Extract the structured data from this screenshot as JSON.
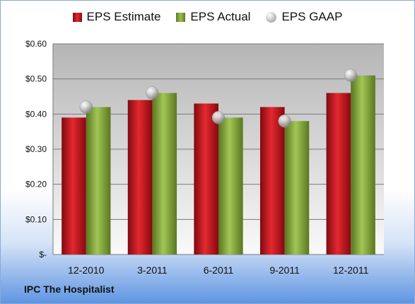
{
  "chart_data": {
    "type": "bar",
    "categories": [
      "12-2010",
      "3-2011",
      "6-2011",
      "9-2011",
      "12-2011"
    ],
    "series": [
      {
        "name": "EPS Estimate",
        "values": [
          0.39,
          0.44,
          0.43,
          0.42,
          0.46
        ],
        "color": "#c8161d"
      },
      {
        "name": "EPS Actual",
        "values": [
          0.42,
          0.46,
          0.39,
          0.38,
          0.51
        ],
        "color": "#86ad3b"
      },
      {
        "name": "EPS GAAP",
        "values": [
          0.42,
          0.46,
          0.39,
          0.38,
          0.51
        ],
        "color": "#b9b9b9",
        "marker": "sphere"
      }
    ],
    "ylim": [
      0,
      0.6
    ],
    "yticks": [
      {
        "value": 0.6,
        "label": "$0.60"
      },
      {
        "value": 0.5,
        "label": "$0.50"
      },
      {
        "value": 0.4,
        "label": "$0.40"
      },
      {
        "value": 0.3,
        "label": "$0.30"
      },
      {
        "value": 0.2,
        "label": "$0.20"
      },
      {
        "value": 0.1,
        "label": "$0.10"
      },
      {
        "value": 0,
        "label": "$-"
      }
    ],
    "grid": true,
    "legend": "top-center"
  },
  "footer": {
    "company": "IPC The Hospitalist"
  }
}
